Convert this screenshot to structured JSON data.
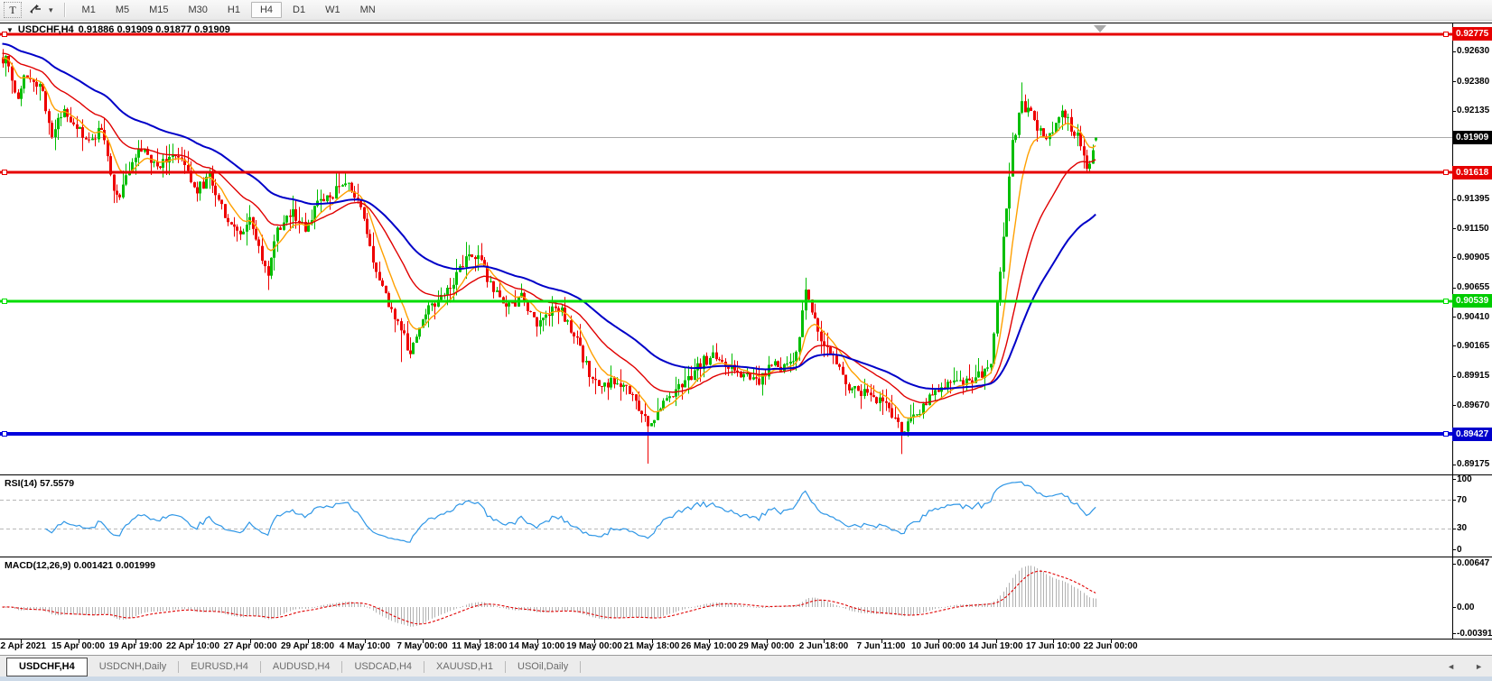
{
  "toolbar": {
    "text_tool_label": "T",
    "dropdown_caret": "▾",
    "timeframes": [
      {
        "label": "M1"
      },
      {
        "label": "M5"
      },
      {
        "label": "M15"
      },
      {
        "label": "M30"
      },
      {
        "label": "H1"
      },
      {
        "label": "H4",
        "active": true
      },
      {
        "label": "D1"
      },
      {
        "label": "W1"
      },
      {
        "label": "MN"
      }
    ]
  },
  "chart": {
    "dropdown_glyph": "▼",
    "symbol_title": "USDCHF,H4",
    "ohlc_line": "0.91886 0.91909 0.91877 0.91909"
  },
  "indicators": {
    "rsi": {
      "label": "RSI(14) 57.5579",
      "axis": [
        {
          "text": "100",
          "value": 100
        },
        {
          "text": "70",
          "value": 70
        },
        {
          "text": "30",
          "value": 30
        },
        {
          "text": "0",
          "value": 0
        }
      ],
      "line_color": "#2e96e6",
      "level_lines": [
        70,
        30
      ]
    },
    "macd": {
      "label": "MACD(12,26,9) 0.001421 0.001999",
      "axis": [
        {
          "text": "0.00647",
          "value": 0.00647
        },
        {
          "text": "0.00",
          "value": 0
        },
        {
          "text": "-0.003916",
          "value": -0.003916
        }
      ],
      "histogram_color": "#b2b2b2",
      "signal_color": "#e00000"
    }
  },
  "price_axis": {
    "labels": [
      {
        "text": "0.92775",
        "price": 0.92775,
        "style": "red"
      },
      {
        "text": "0.92630",
        "price": 0.9263,
        "style": "tick"
      },
      {
        "text": "0.92380",
        "price": 0.9238,
        "style": "tick"
      },
      {
        "text": "0.92135",
        "price": 0.92135,
        "style": "tick"
      },
      {
        "text": "0.91909",
        "price": 0.91909,
        "style": "black"
      },
      {
        "text": "0.91618",
        "price": 0.91618,
        "style": "red"
      },
      {
        "text": "0.91395",
        "price": 0.91395,
        "style": "tick"
      },
      {
        "text": "0.91150",
        "price": 0.9115,
        "style": "tick"
      },
      {
        "text": "0.90905",
        "price": 0.90905,
        "style": "tick"
      },
      {
        "text": "0.90655",
        "price": 0.90655,
        "style": "tick"
      },
      {
        "text": "0.90539",
        "price": 0.90539,
        "style": "green"
      },
      {
        "text": "0.90410",
        "price": 0.9041,
        "style": "tick"
      },
      {
        "text": "0.90165",
        "price": 0.90165,
        "style": "tick"
      },
      {
        "text": "0.89915",
        "price": 0.89915,
        "style": "tick"
      },
      {
        "text": "0.89670",
        "price": 0.8967,
        "style": "tick"
      },
      {
        "text": "0.89427",
        "price": 0.89427,
        "style": "blue"
      },
      {
        "text": "0.89175",
        "price": 0.89175,
        "style": "tick"
      }
    ],
    "badge_colors": {
      "red": "#e60000",
      "black": "#000000",
      "green": "#00cc00",
      "blue": "#0000cc"
    }
  },
  "time_axis": {
    "labels": [
      "12 Apr 2021",
      "15 Apr 00:00",
      "19 Apr 19:00",
      "22 Apr 10:00",
      "27 Apr 00:00",
      "29 Apr 18:00",
      "4 May 10:00",
      "7 May 00:00",
      "11 May 18:00",
      "14 May 10:00",
      "19 May 00:00",
      "21 May 18:00",
      "26 May 10:00",
      "29 May 00:00",
      "2 Jun 18:00",
      "7 Jun 11:00",
      "10 Jun 00:00",
      "14 Jun 19:00",
      "17 Jun 10:00",
      "22 Jun 00:00"
    ]
  },
  "tabs": {
    "items": [
      {
        "label": "USDCHF,H4",
        "active": true
      },
      {
        "label": "USDCNH,Daily"
      },
      {
        "label": "EURUSD,H4"
      },
      {
        "label": "AUDUSD,H4"
      },
      {
        "label": "USDCAD,H4"
      },
      {
        "label": "XAUUSD,H1"
      },
      {
        "label": "USOil,Daily"
      }
    ],
    "scroll_left": "◄",
    "scroll_right": "►"
  },
  "chart_data": {
    "type": "candlestick",
    "symbol": "USDCHF",
    "timeframe": "H4",
    "date_range": "12 Apr 2021 - 22 Jun 2021",
    "current_price": 0.91909,
    "last_candle": {
      "open": 0.91886,
      "high": 0.91909,
      "low": 0.91877,
      "close": 0.91909
    },
    "first_open": 0.9258,
    "bar_count": 355,
    "price_range": {
      "top": 0.92864,
      "bottom": 0.89089
    },
    "bull_color": "#00be00",
    "bear_color": "#ee0000",
    "current_price_line_color": "#aaaaaa",
    "hlines": [
      {
        "price": 0.92775,
        "color": "#e60000",
        "width": 3
      },
      {
        "price": 0.91618,
        "color": "#e60000",
        "width": 3
      },
      {
        "price": 0.90539,
        "color": "#00dd00",
        "width": 3
      },
      {
        "price": 0.89427,
        "color": "#0000dd",
        "width": 4
      }
    ],
    "moving_averages": [
      {
        "period": 9,
        "color": "#ffa000",
        "width": 1.4,
        "seed": 0.9258
      },
      {
        "period": 26,
        "color": "#e00000",
        "width": 1.4,
        "seed": 0.9262
      },
      {
        "period": 55,
        "color": "#0000c8",
        "width": 2,
        "seed": 0.927
      }
    ],
    "rsi_period": 14,
    "macd_params": [
      12,
      26,
      9
    ],
    "close_path_anchors": [
      [
        0,
        0.9252
      ],
      [
        1,
        0.9262
      ],
      [
        3,
        0.924
      ],
      [
        5,
        0.9224
      ],
      [
        7,
        0.9246
      ],
      [
        10,
        0.9237
      ],
      [
        13,
        0.9229
      ],
      [
        16,
        0.9192
      ],
      [
        20,
        0.9215
      ],
      [
        24,
        0.92
      ],
      [
        28,
        0.9185
      ],
      [
        32,
        0.92
      ],
      [
        36,
        0.9148
      ],
      [
        38,
        0.914
      ],
      [
        41,
        0.9166
      ],
      [
        45,
        0.9181
      ],
      [
        50,
        0.9166
      ],
      [
        54,
        0.9177
      ],
      [
        58,
        0.917
      ],
      [
        63,
        0.9147
      ],
      [
        67,
        0.9158
      ],
      [
        72,
        0.9128
      ],
      [
        76,
        0.911
      ],
      [
        80,
        0.9121
      ],
      [
        84,
        0.9088
      ],
      [
        86,
        0.9078
      ],
      [
        89,
        0.9113
      ],
      [
        94,
        0.9128
      ],
      [
        98,
        0.9113
      ],
      [
        102,
        0.9136
      ],
      [
        107,
        0.9143
      ],
      [
        111,
        0.9155
      ],
      [
        116,
        0.9132
      ],
      [
        120,
        0.9087
      ],
      [
        124,
        0.9057
      ],
      [
        129,
        0.9031
      ],
      [
        132,
        0.9008
      ],
      [
        134,
        0.9025
      ],
      [
        137,
        0.9046
      ],
      [
        142,
        0.9057
      ],
      [
        146,
        0.9072
      ],
      [
        151,
        0.9095
      ],
      [
        155,
        0.9087
      ],
      [
        159,
        0.9061
      ],
      [
        164,
        0.9049
      ],
      [
        168,
        0.9057
      ],
      [
        173,
        0.9035
      ],
      [
        177,
        0.9046
      ],
      [
        181,
        0.9046
      ],
      [
        186,
        0.9019
      ],
      [
        190,
        0.8993
      ],
      [
        194,
        0.8981
      ],
      [
        199,
        0.8989
      ],
      [
        205,
        0.897
      ],
      [
        209,
        0.895
      ],
      [
        213,
        0.8966
      ],
      [
        218,
        0.8981
      ],
      [
        222,
        0.8989
      ],
      [
        227,
        0.9004
      ],
      [
        231,
        0.9008
      ],
      [
        235,
        0.9
      ],
      [
        240,
        0.8993
      ],
      [
        244,
        0.8985
      ],
      [
        249,
        0.9
      ],
      [
        253,
        0.8997
      ],
      [
        257,
        0.9008
      ],
      [
        260,
        0.9061
      ],
      [
        263,
        0.904
      ],
      [
        265,
        0.9019
      ],
      [
        269,
        0.9012
      ],
      [
        273,
        0.8985
      ],
      [
        278,
        0.8977
      ],
      [
        282,
        0.8974
      ],
      [
        287,
        0.8966
      ],
      [
        291,
        0.8944
      ],
      [
        295,
        0.8955
      ],
      [
        300,
        0.8974
      ],
      [
        304,
        0.8981
      ],
      [
        308,
        0.8989
      ],
      [
        313,
        0.8985
      ],
      [
        317,
        0.8993
      ],
      [
        320,
        0.9004
      ],
      [
        322,
        0.9049
      ],
      [
        324,
        0.9105
      ],
      [
        326,
        0.9162
      ],
      [
        327,
        0.9185
      ],
      [
        329,
        0.9208
      ],
      [
        330,
        0.9219
      ],
      [
        333,
        0.9211
      ],
      [
        335,
        0.92
      ],
      [
        338,
        0.9189
      ],
      [
        341,
        0.9204
      ],
      [
        343,
        0.9215
      ],
      [
        346,
        0.92
      ],
      [
        348,
        0.9192
      ],
      [
        351,
        0.9165
      ],
      [
        353,
        0.9176
      ],
      [
        354,
        0.91909
      ]
    ],
    "forced_extremes": [
      {
        "bar": 0,
        "high": 0.9265
      },
      {
        "bar": 129,
        "low": 0.9003
      },
      {
        "bar": 209,
        "low": 0.8918
      },
      {
        "bar": 291,
        "low": 0.8926
      },
      {
        "bar": 330,
        "high": 0.9237
      }
    ]
  }
}
